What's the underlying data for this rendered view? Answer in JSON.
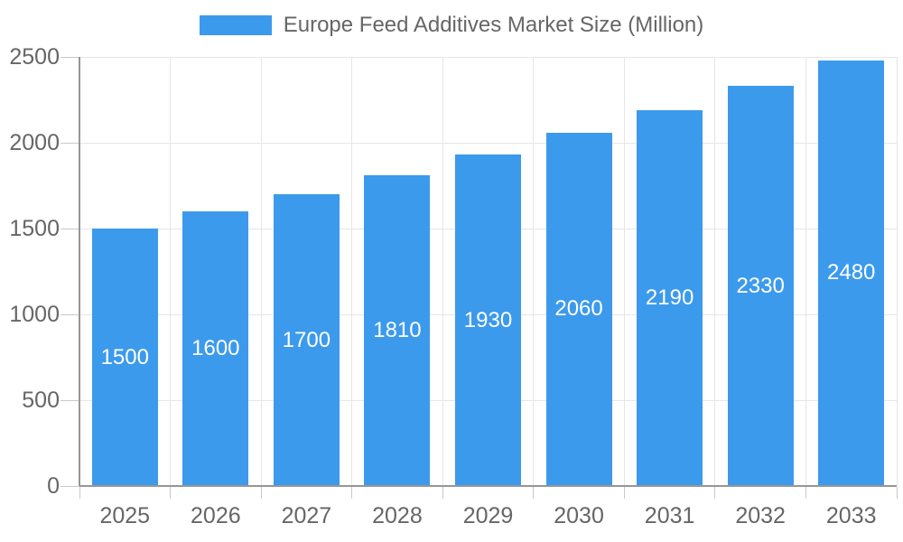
{
  "chart_data": {
    "type": "bar",
    "title": "Europe Feed Additives Market Size (Million)",
    "categories": [
      "2025",
      "2026",
      "2027",
      "2028",
      "2029",
      "2030",
      "2031",
      "2032",
      "2033"
    ],
    "series": [
      {
        "name": "Europe Feed Additives Market Size (Million)",
        "values": [
          1500,
          1600,
          1700,
          1810,
          1930,
          2060,
          2190,
          2330,
          2480
        ]
      }
    ],
    "value_labels": [
      "1500",
      "1600",
      "1700",
      "1810",
      "1930",
      "2060",
      "2190",
      "2330",
      "2480"
    ],
    "xlabel": "",
    "ylabel": "",
    "ylim": [
      0,
      2500
    ],
    "yticks": [
      0,
      500,
      1000,
      1500,
      2000,
      2500
    ],
    "grid": true,
    "legend_position": "top",
    "colors": {
      "bar": "#3C9AEC",
      "bar_value_text": "#FFFFFF",
      "gridline": "#E6E6E6",
      "axis_line": "#969696",
      "tick_mark": "#C9C9C9",
      "axis_text": "#666666",
      "legend_text": "#666666",
      "background": "#FFFFFF"
    }
  }
}
